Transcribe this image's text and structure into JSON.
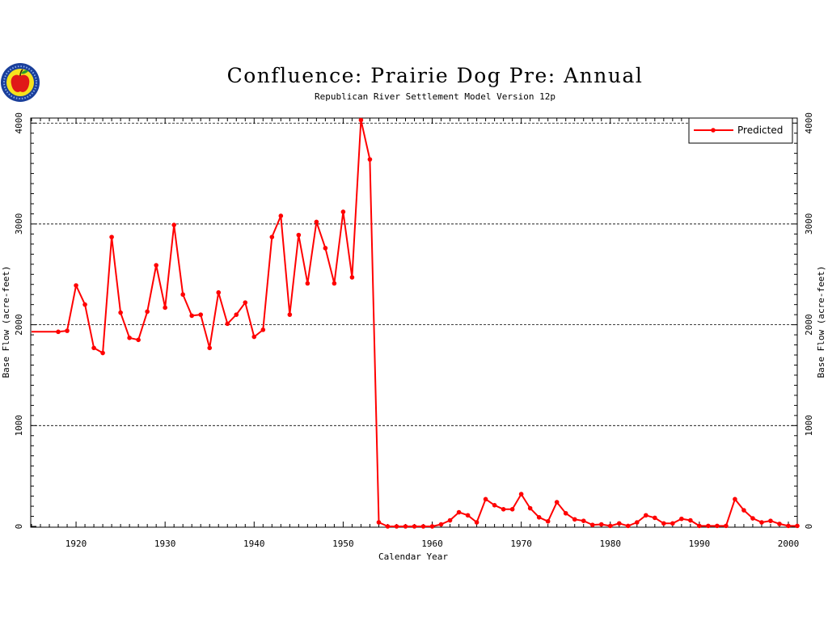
{
  "chart_data": {
    "type": "line",
    "title": "Confluence: Prairie Dog Pre: Annual",
    "subtitle": "Republican River Settlement Model Version 12p",
    "xlabel": "Calendar Year",
    "ylabel": "Base Flow (acre-feet)",
    "xlim": [
      1915,
      2001
    ],
    "ylim": [
      0,
      4050
    ],
    "x_ticks": [
      1920,
      1930,
      1940,
      1950,
      1960,
      1970,
      1980,
      1990,
      2000
    ],
    "y_ticks": [
      0,
      1000,
      2000,
      3000,
      4000
    ],
    "grid_y": [
      1000,
      2000,
      3000,
      4000
    ],
    "grid": "horizontal dashed",
    "legend_position": "top-right",
    "series": [
      {
        "name": "Predicted",
        "color": "#ff0000",
        "marker": "circle",
        "x": [
          1915,
          1918,
          1919,
          1920,
          1921,
          1922,
          1923,
          1924,
          1925,
          1926,
          1927,
          1928,
          1929,
          1930,
          1931,
          1932,
          1933,
          1934,
          1935,
          1936,
          1937,
          1938,
          1939,
          1940,
          1941,
          1942,
          1943,
          1944,
          1945,
          1946,
          1947,
          1948,
          1949,
          1950,
          1951,
          1952,
          1953,
          1954,
          1955,
          1956,
          1957,
          1958,
          1959,
          1960,
          1961,
          1962,
          1963,
          1964,
          1965,
          1966,
          1967,
          1968,
          1969,
          1970,
          1971,
          1972,
          1973,
          1974,
          1975,
          1976,
          1977,
          1978,
          1979,
          1980,
          1981,
          1982,
          1983,
          1984,
          1985,
          1986,
          1987,
          1988,
          1989,
          1990,
          1991,
          1992,
          1993,
          1994,
          1995,
          1996,
          1997,
          1998,
          1999,
          2000,
          2001
        ],
        "values": [
          1930,
          1930,
          1940,
          2390,
          2200,
          1770,
          1720,
          2870,
          2120,
          1870,
          1850,
          2130,
          2590,
          2170,
          2990,
          2300,
          2090,
          2100,
          1770,
          2320,
          2010,
          2100,
          2220,
          1880,
          1950,
          2870,
          3080,
          2100,
          2890,
          2410,
          3020,
          2760,
          2410,
          3120,
          2470,
          4030,
          3640,
          40,
          0,
          0,
          0,
          0,
          0,
          0,
          20,
          60,
          140,
          110,
          40,
          270,
          210,
          170,
          170,
          320,
          180,
          90,
          50,
          240,
          130,
          70,
          55,
          15,
          20,
          5,
          30,
          5,
          40,
          110,
          85,
          30,
          30,
          75,
          60,
          5,
          5,
          5,
          5,
          270,
          160,
          80,
          40,
          55,
          25,
          5,
          5
        ]
      }
    ]
  }
}
